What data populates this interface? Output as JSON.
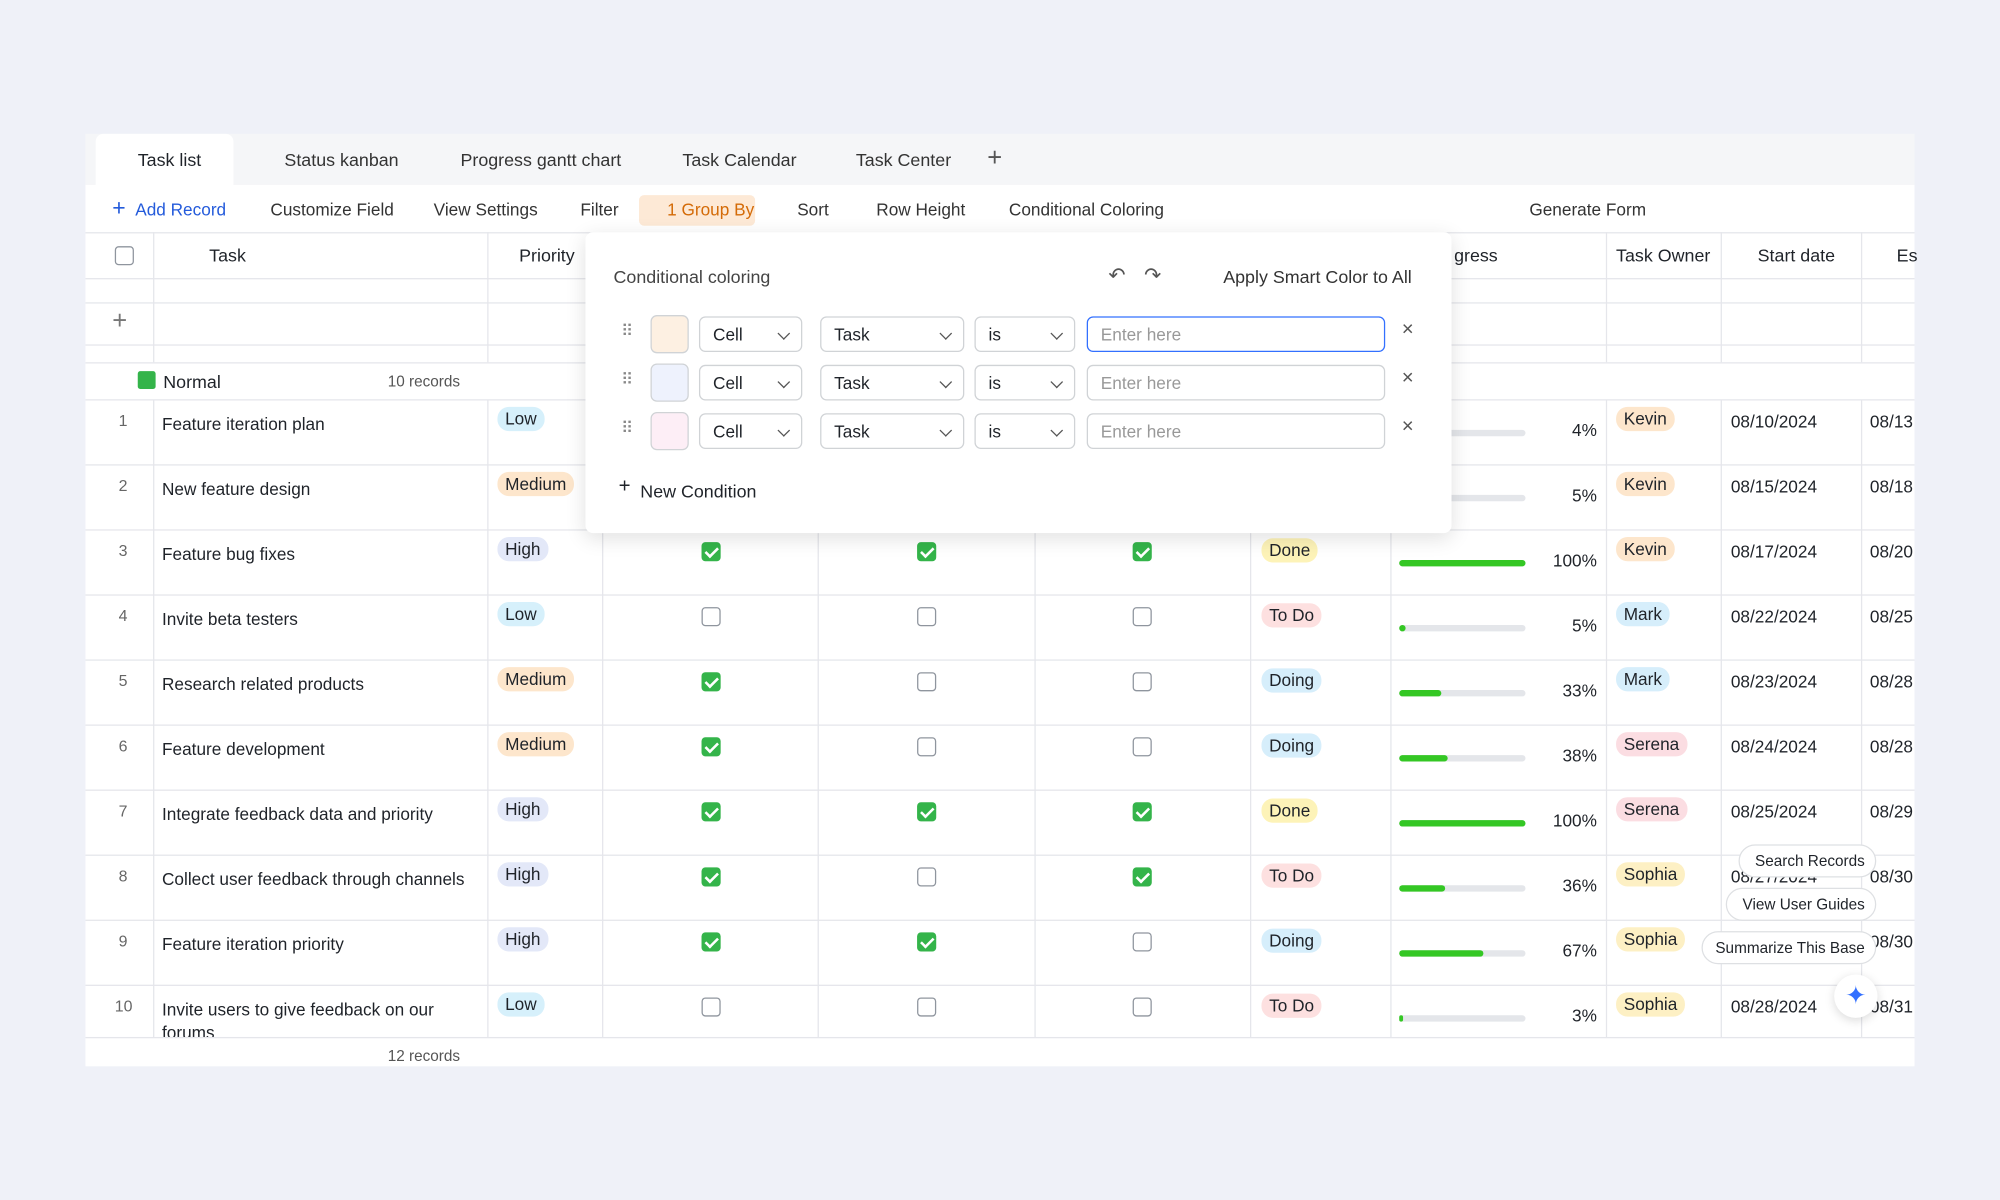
{
  "tabs": [
    "Task list",
    "Status kanban",
    "Progress gantt chart",
    "Task Calendar",
    "Task Center"
  ],
  "toolbar": [
    "Add Record",
    "Customize Field",
    "View Settings",
    "Filter",
    "1 Group By",
    "Sort",
    "Row Height",
    "Conditional Coloring"
  ],
  "toolbar_right": [
    "Generate Form"
  ],
  "headers": {
    "task": "Task",
    "priority": "Priority",
    "progress": "gress",
    "owner": "Task Owner",
    "start": "Start date",
    "est": "Es"
  },
  "group": {
    "name": "Normal",
    "count": "10 records"
  },
  "footer": "12 records",
  "rows": [
    {
      "no": 1,
      "task": "Feature iteration plan",
      "priority": "Low",
      "checks": [
        null,
        null,
        null
      ],
      "status": null,
      "progress": 4,
      "progress_label": "4%",
      "owner": "Kevin",
      "start": "08/10/2024",
      "est": "08/13"
    },
    {
      "no": 2,
      "task": "New feature design",
      "priority": "Medium",
      "checks": [
        null,
        null,
        null
      ],
      "status": null,
      "progress": 5,
      "progress_label": "5%",
      "owner": "Kevin",
      "start": "08/15/2024",
      "est": "08/18"
    },
    {
      "no": 3,
      "task": "Feature bug fixes",
      "priority": "High",
      "checks": [
        true,
        true,
        true
      ],
      "status": "Done",
      "progress": 100,
      "progress_label": "100%",
      "owner": "Kevin",
      "start": "08/17/2024",
      "est": "08/20"
    },
    {
      "no": 4,
      "task": "Invite beta testers",
      "priority": "Low",
      "checks": [
        false,
        false,
        false
      ],
      "status": "To Do",
      "progress": 5,
      "progress_label": "5%",
      "owner": "Mark",
      "start": "08/22/2024",
      "est": "08/25"
    },
    {
      "no": 5,
      "task": "Research related products",
      "priority": "Medium",
      "checks": [
        true,
        false,
        false
      ],
      "status": "Doing",
      "progress": 33,
      "progress_label": "33%",
      "owner": "Mark",
      "start": "08/23/2024",
      "est": "08/28"
    },
    {
      "no": 6,
      "task": "Feature development",
      "priority": "Medium",
      "checks": [
        true,
        false,
        false
      ],
      "status": "Doing",
      "progress": 38,
      "progress_label": "38%",
      "owner": "Serena",
      "start": "08/24/2024",
      "est": "08/28"
    },
    {
      "no": 7,
      "task": "Integrate feedback data and priority",
      "priority": "High",
      "checks": [
        true,
        true,
        true
      ],
      "status": "Done",
      "progress": 100,
      "progress_label": "100%",
      "owner": "Serena",
      "start": "08/25/2024",
      "est": "08/29"
    },
    {
      "no": 8,
      "task": "Collect user feedback through channels",
      "priority": "High",
      "checks": [
        true,
        false,
        true
      ],
      "status": "To Do",
      "progress": 36,
      "progress_label": "36%",
      "owner": "Sophia",
      "start": "08/27/2024",
      "est": "08/30"
    },
    {
      "no": 9,
      "task": "Feature iteration priority",
      "priority": "High",
      "checks": [
        true,
        true,
        false
      ],
      "status": "Doing",
      "progress": 67,
      "progress_label": "67%",
      "owner": "Sophia",
      "start": null,
      "est": "08/30"
    },
    {
      "no": 10,
      "task": "Invite users to give feedback on our forums",
      "priority": "Low",
      "checks": [
        false,
        false,
        false
      ],
      "status": "To Do",
      "progress": 3,
      "progress_label": "3%",
      "owner": "Sophia",
      "start": "08/28/2024",
      "est": "08/31"
    }
  ],
  "popup": {
    "title": "Conditional coloring",
    "smart": "Apply Smart Color to All",
    "add": "New Condition",
    "conditions": [
      {
        "scope": "Cell",
        "field": "Task",
        "op": "is",
        "placeholder": "Enter here",
        "color": "#fdf0e2"
      },
      {
        "scope": "Cell",
        "field": "Task",
        "op": "is",
        "placeholder": "Enter here",
        "color": "#eef2fd"
      },
      {
        "scope": "Cell",
        "field": "Task",
        "op": "is",
        "placeholder": "Enter here",
        "color": "#fdeef6"
      }
    ]
  },
  "assist": [
    "Search Records",
    "View User Guides",
    "Summarize This Base"
  ]
}
